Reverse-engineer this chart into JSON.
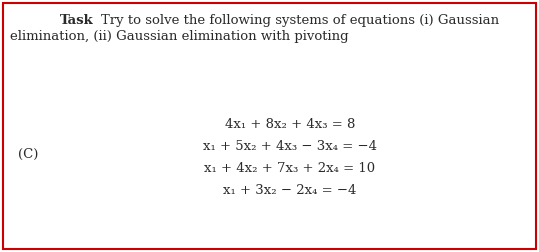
{
  "title_bold": "Task",
  "title_dot": " .  ",
  "title_rest_line1": "Try to solve the following systems of equations (i) Gaussian",
  "title_rest_line2": "elimination, (ii) Gaussian elimination with pivoting",
  "label_C": "(C)",
  "eq1": "4x₁ + 8x₂ + 4x₃ = 8",
  "eq2": "x₁ + 5x₂ + 4x₃ − 3x₄ = −4",
  "eq3": "x₁ + 4x₂ + 7x₃ + 2x₄ = 10",
  "eq4": "x₁ + 3x₂ − 2x₄ = −4",
  "bg_color": "#ffffff",
  "border_color": "#cc0000",
  "text_color": "#2a2a2a",
  "fontsize_title": 9.5,
  "fontsize_eq": 9.5,
  "fontsize_C": 9.5
}
